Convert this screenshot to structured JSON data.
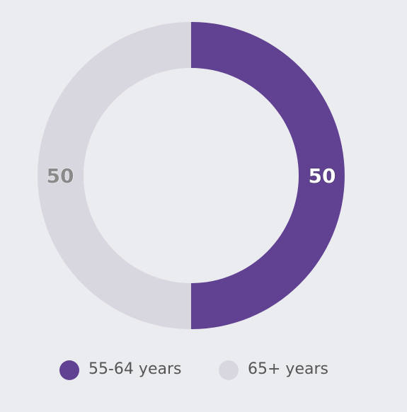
{
  "chart_data": {
    "type": "donut",
    "categories": [
      "55-64 years",
      "65+ years"
    ],
    "values": [
      50,
      50
    ],
    "colors": [
      "#614191",
      "#d8d7df"
    ],
    "label_colors": [
      "#ffffff",
      "#8a8a8a"
    ],
    "legend": "bottom"
  }
}
